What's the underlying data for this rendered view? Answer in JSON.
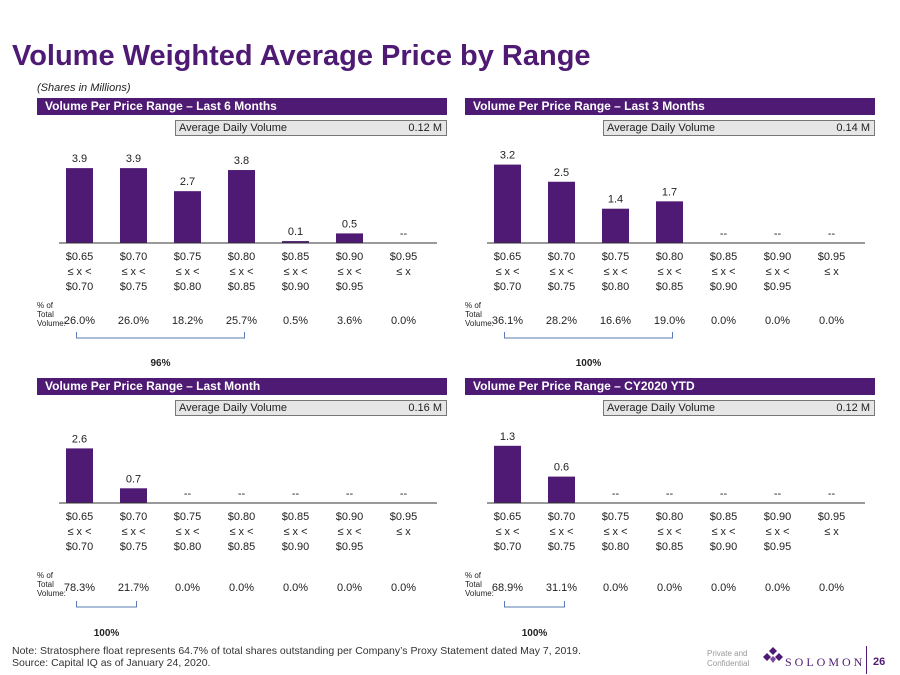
{
  "title": "Volume Weighted Average Price by Range",
  "subtitle": "(Shares in Millions)",
  "colors": {
    "accent": "#4e1a73",
    "bar": "#4e1a73",
    "adv_bg": "#e6e6e6"
  },
  "pct_label_lines": [
    "% of",
    "Total",
    "Volume:"
  ],
  "adv_label": "Average Daily Volume",
  "chart_data": [
    {
      "type": "bar",
      "title": "Volume Per Price Range – Last 6 Months",
      "adv_value": "0.12 M",
      "categories": [
        [
          "$0.65",
          "≤ x <",
          "$0.70"
        ],
        [
          "$0.70",
          "≤ x <",
          "$0.75"
        ],
        [
          "$0.75",
          "≤ x <",
          "$0.80"
        ],
        [
          "$0.80",
          "≤ x <",
          "$0.85"
        ],
        [
          "$0.85",
          "≤ x <",
          "$0.90"
        ],
        [
          "$0.90",
          "≤ x <",
          "$0.95"
        ],
        [
          "$0.95",
          "≤ x",
          ""
        ]
      ],
      "values": [
        3.9,
        3.9,
        2.7,
        3.8,
        0.1,
        0.5,
        null
      ],
      "value_labels": [
        "3.9",
        "3.9",
        "2.7",
        "3.8",
        "0.1",
        "0.5",
        "--"
      ],
      "percentages": [
        "26.0%",
        "26.0%",
        "18.2%",
        "25.7%",
        "0.5%",
        "3.6%",
        "0.0%"
      ],
      "bracket": {
        "start": 0,
        "end": 3,
        "label": "96%"
      }
    },
    {
      "type": "bar",
      "title": "Volume Per Price Range – Last 3 Months",
      "adv_value": "0.14 M",
      "categories": [
        [
          "$0.65",
          "≤ x <",
          "$0.70"
        ],
        [
          "$0.70",
          "≤ x <",
          "$0.75"
        ],
        [
          "$0.75",
          "≤ x <",
          "$0.80"
        ],
        [
          "$0.80",
          "≤ x <",
          "$0.85"
        ],
        [
          "$0.85",
          "≤ x <",
          "$0.90"
        ],
        [
          "$0.90",
          "≤ x <",
          "$0.95"
        ],
        [
          "$0.95",
          "≤ x",
          ""
        ]
      ],
      "values": [
        3.2,
        2.5,
        1.4,
        1.7,
        null,
        null,
        null
      ],
      "value_labels": [
        "3.2",
        "2.5",
        "1.4",
        "1.7",
        "--",
        "--",
        "--"
      ],
      "percentages": [
        "36.1%",
        "28.2%",
        "16.6%",
        "19.0%",
        "0.0%",
        "0.0%",
        "0.0%"
      ],
      "bracket": {
        "start": 0,
        "end": 3,
        "label": "100%"
      }
    },
    {
      "type": "bar",
      "title": "Volume Per Price Range – Last Month",
      "adv_value": "0.16 M",
      "categories": [
        [
          "$0.65",
          "≤ x <",
          "$0.70"
        ],
        [
          "$0.70",
          "≤ x <",
          "$0.75"
        ],
        [
          "$0.75",
          "≤ x <",
          "$0.80"
        ],
        [
          "$0.80",
          "≤ x <",
          "$0.85"
        ],
        [
          "$0.85",
          "≤ x <",
          "$0.90"
        ],
        [
          "$0.90",
          "≤ x <",
          "$0.95"
        ],
        [
          "$0.95",
          "≤ x",
          ""
        ]
      ],
      "values": [
        2.6,
        0.7,
        null,
        null,
        null,
        null,
        null
      ],
      "value_labels": [
        "2.6",
        "0.7",
        "--",
        "--",
        "--",
        "--",
        "--"
      ],
      "percentages": [
        "78.3%",
        "21.7%",
        "0.0%",
        "0.0%",
        "0.0%",
        "0.0%",
        "0.0%"
      ],
      "bracket": {
        "start": 0,
        "end": 1,
        "label": "100%"
      }
    },
    {
      "type": "bar",
      "title": "Volume Per Price Range – CY2020 YTD",
      "adv_value": "0.12 M",
      "categories": [
        [
          "$0.65",
          "≤ x <",
          "$0.70"
        ],
        [
          "$0.70",
          "≤ x <",
          "$0.75"
        ],
        [
          "$0.75",
          "≤ x <",
          "$0.80"
        ],
        [
          "$0.80",
          "≤ x <",
          "$0.85"
        ],
        [
          "$0.85",
          "≤ x <",
          "$0.90"
        ],
        [
          "$0.90",
          "≤ x <",
          "$0.95"
        ],
        [
          "$0.95",
          "≤ x",
          ""
        ]
      ],
      "values": [
        1.3,
        0.6,
        null,
        null,
        null,
        null,
        null
      ],
      "value_labels": [
        "1.3",
        "0.6",
        "--",
        "--",
        "--",
        "--",
        "--"
      ],
      "percentages": [
        "68.9%",
        "31.1%",
        "0.0%",
        "0.0%",
        "0.0%",
        "0.0%",
        "0.0%"
      ],
      "bracket": {
        "start": 0,
        "end": 1,
        "label": "100%"
      }
    }
  ],
  "footer": {
    "note": "Note: Stratosphere float represents 64.7% of total shares outstanding per Company’s Proxy Statement dated May 7, 2019.",
    "source": "Source: Capital IQ as of January 24, 2020.",
    "private_line1": "Private and",
    "private_line2": "Confidential",
    "logo_text": "SOLOMON",
    "page_number": "26"
  }
}
